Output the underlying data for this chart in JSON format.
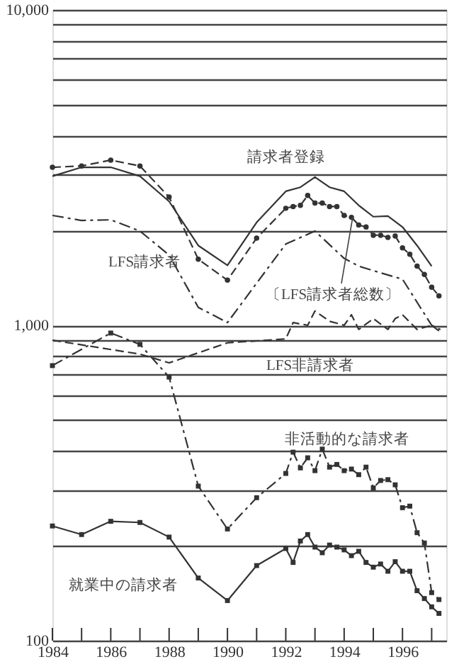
{
  "chart_data": {
    "type": "line",
    "log": "y",
    "grid": "y",
    "xlim": [
      1984,
      1997.5
    ],
    "ylim": [
      100,
      10000
    ],
    "xticks": [
      1984,
      {
        "value": 1985,
        "label": null
      },
      1986,
      {
        "value": 1987,
        "label": null
      },
      1988,
      {
        "value": 1989,
        "label": null
      },
      1990,
      {
        "value": 1991,
        "label": null
      },
      1992,
      {
        "value": 1993,
        "label": null
      },
      1994,
      {
        "value": 1995,
        "label": null
      },
      1996,
      {
        "value": 1997,
        "label": null
      }
    ],
    "yticks": [
      {
        "value": 100,
        "label": "100"
      },
      {
        "value": 200,
        "label": null
      },
      {
        "value": 300,
        "label": null
      },
      {
        "value": 400,
        "label": null
      },
      {
        "value": 500,
        "label": null
      },
      {
        "value": 600,
        "label": null
      },
      {
        "value": 700,
        "label": null
      },
      {
        "value": 800,
        "label": null
      },
      {
        "value": 900,
        "label": null
      },
      {
        "value": 1000,
        "label": "1,000"
      },
      {
        "value": 2000,
        "label": null
      },
      {
        "value": 3000,
        "label": null
      },
      {
        "value": 4000,
        "label": null
      },
      {
        "value": 5000,
        "label": null
      },
      {
        "value": 6000,
        "label": null
      },
      {
        "value": 7000,
        "label": null
      },
      {
        "value": 8000,
        "label": null
      },
      {
        "value": 9000,
        "label": null
      },
      {
        "value": 10000,
        "label": "10,000"
      }
    ],
    "series": [
      {
        "name": "請求者登録",
        "color": "#333333",
        "line_style": "solid",
        "marker": "none",
        "x": [
          1984,
          1985,
          1986,
          1987,
          1988,
          1989,
          1990,
          1991,
          1992,
          1992.5,
          1993,
          1993.5,
          1994,
          1994.5,
          1995,
          1995.5,
          1996,
          1996.5,
          1997
        ],
        "values": [
          2970,
          3170,
          3170,
          2970,
          2470,
          1790,
          1550,
          2120,
          2660,
          2740,
          2950,
          2740,
          2660,
          2400,
          2210,
          2220,
          2050,
          1790,
          1540
        ]
      },
      {
        "name": "〔LFS請求者総数〕",
        "color": "#333333",
        "line_style": "dashed",
        "marker": "circle",
        "x": [
          1984,
          1985,
          1986,
          1987,
          1988,
          1989,
          1990,
          1991,
          1992,
          1992.25,
          1992.5,
          1992.75,
          1993,
          1993.25,
          1993.5,
          1993.75,
          1994,
          1994.25,
          1994.5,
          1994.75,
          1995,
          1995.25,
          1995.5,
          1995.75,
          1996,
          1996.25,
          1996.5,
          1996.75,
          1997,
          1997.25
        ],
        "values": [
          3170,
          3200,
          3340,
          3200,
          2550,
          1620,
          1390,
          1890,
          2350,
          2380,
          2400,
          2580,
          2440,
          2440,
          2380,
          2380,
          2230,
          2200,
          2080,
          2050,
          1930,
          1930,
          1900,
          1920,
          1760,
          1680,
          1540,
          1450,
          1320,
          1240
        ]
      },
      {
        "name": "LFS請求者",
        "color": "#333333",
        "line_style": "dashdot",
        "marker": "none",
        "x": [
          1984,
          1985,
          1986,
          1987,
          1988,
          1989,
          1990,
          1991,
          1992,
          1993,
          1994,
          1994.5,
          1995,
          1996,
          1997,
          1997.3
        ],
        "values": [
          2230,
          2150,
          2160,
          1990,
          1670,
          1140,
          1020,
          1360,
          1810,
          1990,
          1630,
          1540,
          1490,
          1400,
          1000,
          970
        ]
      },
      {
        "name": "LFS非請求者",
        "color": "#333333",
        "line_style": "dashed",
        "marker": "none",
        "x": [
          1984,
          1987,
          1988,
          1990,
          1992,
          1992.25,
          1992.75,
          1993,
          1993.5,
          1994,
          1994.25,
          1994.5,
          1995,
          1995.5,
          1995.75,
          1996,
          1996.5,
          1997,
          1997.25
        ],
        "values": [
          897,
          810,
          760,
          880,
          905,
          1020,
          1000,
          1110,
          1030,
          1000,
          1080,
          970,
          1050,
          970,
          1050,
          1080,
          970,
          1000,
          960
        ]
      },
      {
        "name": "非活動的な請求者",
        "color": "#333333",
        "line_style": "dashdot",
        "marker": "square",
        "x": [
          1984,
          1986,
          1987,
          1988,
          1989,
          1990,
          1991,
          1992,
          1992.25,
          1992.5,
          1992.75,
          1993,
          1993.25,
          1993.5,
          1993.75,
          1994,
          1994.25,
          1994.5,
          1994.75,
          1995,
          1995.25,
          1995.5,
          1995.75,
          1996,
          1996.25,
          1996.5,
          1996.75,
          1997,
          1997.25
        ],
        "values": [
          745,
          945,
          870,
          685,
          309,
          226,
          284,
          339,
          396,
          353,
          380,
          346,
          405,
          355,
          362,
          346,
          350,
          336,
          355,
          305,
          322,
          324,
          312,
          264,
          267,
          220,
          204,
          142,
          135
        ]
      },
      {
        "name": "就業中の請求者",
        "color": "#333333",
        "line_style": "solid",
        "marker": "square",
        "x": [
          1984,
          1985,
          1986,
          1987,
          1988,
          1989,
          1990,
          1991,
          1992,
          1992.25,
          1992.5,
          1992.75,
          1993,
          1993.25,
          1993.5,
          1993.75,
          1994,
          1994.25,
          1994.5,
          1994.75,
          1995,
          1995.25,
          1995.5,
          1995.75,
          1996,
          1996.25,
          1996.5,
          1996.75,
          1997,
          1997.25
        ],
        "values": [
          231,
          217,
          239,
          237,
          213,
          158,
          134,
          173,
          196,
          177,
          207,
          217,
          198,
          190,
          201,
          198,
          194,
          186,
          192,
          177,
          171,
          175,
          166,
          178,
          166,
          166,
          144,
          136,
          128,
          122
        ]
      }
    ]
  }
}
